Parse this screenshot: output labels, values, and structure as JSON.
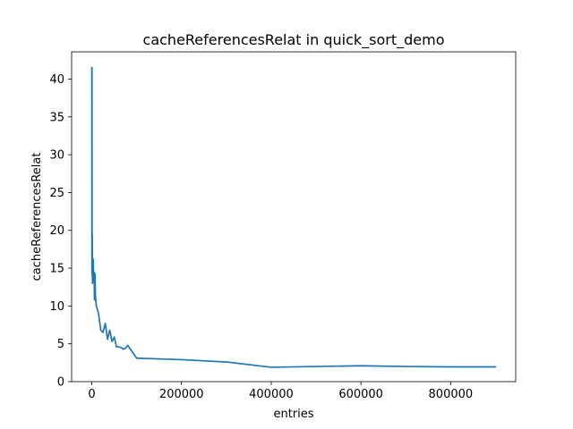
{
  "chart_data": {
    "type": "line",
    "title": "cacheReferencesRelat in quick_sort_demo",
    "xlabel": "entries",
    "ylabel": "cacheReferencesRelat",
    "xlim": [
      -45000,
      945000
    ],
    "ylim": [
      0,
      43.6
    ],
    "xticks": [
      0,
      200000,
      400000,
      600000,
      800000
    ],
    "xtick_labels": [
      "0",
      "200000",
      "400000",
      "600000",
      "800000"
    ],
    "yticks": [
      0,
      5,
      10,
      15,
      20,
      25,
      30,
      35,
      40
    ],
    "ytick_labels": [
      "0",
      "5",
      "10",
      "15",
      "20",
      "25",
      "30",
      "35",
      "40"
    ],
    "grid": false,
    "legend": "none",
    "series_color": "#1f77b4",
    "series": [
      {
        "x": [
          0,
          200,
          400,
          600,
          800,
          1000,
          1500,
          2000,
          2500,
          3000,
          4000,
          5000,
          6000,
          7000,
          8000,
          9000,
          10000,
          15000,
          20000,
          25000,
          30000,
          35000,
          40000,
          45000,
          50000,
          55000,
          60000,
          65000,
          70000,
          75000,
          80000,
          100000,
          200000,
          300000,
          400000,
          500000,
          600000,
          700000,
          800000,
          900000
        ],
        "y": [
          41.5,
          14.5,
          41.5,
          20.0,
          14.0,
          19.5,
          13.0,
          16.0,
          13.5,
          16.2,
          13.2,
          14.5,
          10.8,
          14.3,
          11.5,
          10.7,
          10.0,
          9.0,
          6.8,
          6.5,
          7.7,
          5.6,
          6.8,
          5.3,
          5.9,
          4.6,
          4.6,
          4.5,
          4.3,
          4.4,
          4.8,
          3.1,
          2.9,
          2.6,
          1.9,
          2.0,
          2.1,
          2.0,
          1.95,
          1.95
        ]
      }
    ]
  }
}
